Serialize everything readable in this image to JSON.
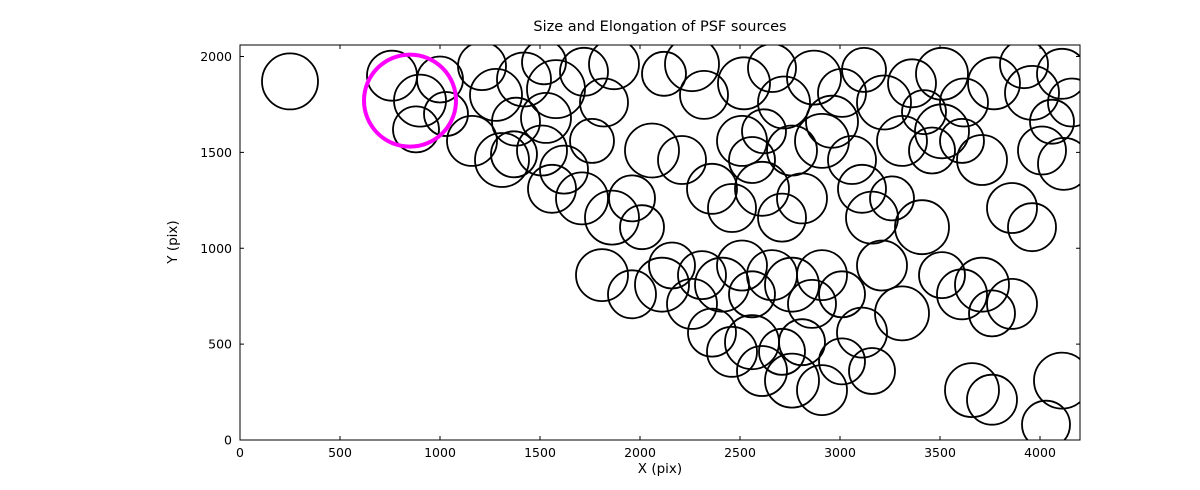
{
  "figure": {
    "title": "Size and Elongation of PSF sources",
    "xlabel": "X (pix)",
    "ylabel": "Y (pix)"
  },
  "chart_data": {
    "type": "scatter",
    "title": "Size and Elongation of PSF sources",
    "xlabel": "X (pix)",
    "ylabel": "Y (pix)",
    "xlim": [
      0,
      4200
    ],
    "ylim": [
      0,
      2060
    ],
    "xticks": [
      0,
      500,
      1000,
      1500,
      2000,
      2500,
      3000,
      3500,
      4000
    ],
    "yticks": [
      0,
      500,
      1000,
      1500,
      2000
    ],
    "grid": false,
    "legend": "none",
    "marker": "open-circle",
    "stroke_color": "#000000",
    "highlight_color": "#ff00ff",
    "circles": [
      [
        250,
        1870,
        140
      ],
      [
        760,
        1900,
        125
      ],
      [
        900,
        1770,
        130
      ],
      [
        1000,
        1880,
        115
      ],
      [
        1030,
        1700,
        110
      ],
      [
        880,
        1620,
        115
      ],
      [
        1210,
        1950,
        120
      ],
      [
        1280,
        1800,
        130
      ],
      [
        1420,
        1880,
        135
      ],
      [
        1520,
        1970,
        110
      ],
      [
        1580,
        1830,
        145
      ],
      [
        1380,
        1660,
        120
      ],
      [
        1530,
        1680,
        125
      ],
      [
        1720,
        1920,
        120
      ],
      [
        1870,
        1960,
        125
      ],
      [
        1820,
        1760,
        120
      ],
      [
        2120,
        1910,
        110
      ],
      [
        2260,
        1960,
        135
      ],
      [
        2320,
        1800,
        120
      ],
      [
        2520,
        1860,
        130
      ],
      [
        2660,
        1940,
        120
      ],
      [
        2720,
        1760,
        130
      ],
      [
        2870,
        1890,
        135
      ],
      [
        3010,
        1810,
        120
      ],
      [
        3120,
        1930,
        110
      ],
      [
        2960,
        1660,
        130
      ],
      [
        3220,
        1760,
        135
      ],
      [
        3360,
        1860,
        120
      ],
      [
        3510,
        1910,
        130
      ],
      [
        3420,
        1710,
        110
      ],
      [
        3620,
        1760,
        120
      ],
      [
        3770,
        1860,
        130
      ],
      [
        3920,
        1960,
        120
      ],
      [
        3960,
        1810,
        135
      ],
      [
        4110,
        1910,
        125
      ],
      [
        4160,
        1760,
        120
      ],
      [
        4060,
        1660,
        110
      ],
      [
        1160,
        1560,
        125
      ],
      [
        1310,
        1460,
        135
      ],
      [
        1370,
        1490,
        115
      ],
      [
        1510,
        1510,
        125
      ],
      [
        1620,
        1410,
        120
      ],
      [
        1760,
        1560,
        110
      ],
      [
        2060,
        1510,
        135
      ],
      [
        2210,
        1460,
        120
      ],
      [
        2510,
        1560,
        125
      ],
      [
        2560,
        1460,
        115
      ],
      [
        2620,
        1610,
        110
      ],
      [
        2760,
        1510,
        125
      ],
      [
        2910,
        1560,
        135
      ],
      [
        3060,
        1460,
        120
      ],
      [
        3310,
        1560,
        125
      ],
      [
        3460,
        1510,
        115
      ],
      [
        3510,
        1610,
        135
      ],
      [
        3610,
        1560,
        110
      ],
      [
        3710,
        1460,
        125
      ],
      [
        4010,
        1510,
        120
      ],
      [
        4120,
        1440,
        130
      ],
      [
        1560,
        1310,
        120
      ],
      [
        1710,
        1260,
        130
      ],
      [
        1860,
        1160,
        135
      ],
      [
        1960,
        1260,
        115
      ],
      [
        2010,
        1110,
        110
      ],
      [
        2360,
        1310,
        125
      ],
      [
        2460,
        1210,
        120
      ],
      [
        2610,
        1310,
        135
      ],
      [
        2710,
        1160,
        120
      ],
      [
        2810,
        1260,
        125
      ],
      [
        3110,
        1310,
        120
      ],
      [
        3160,
        1160,
        130
      ],
      [
        3260,
        1260,
        110
      ],
      [
        3410,
        1110,
        135
      ],
      [
        3860,
        1210,
        125
      ],
      [
        3960,
        1110,
        120
      ],
      [
        1810,
        860,
        130
      ],
      [
        1960,
        760,
        120
      ],
      [
        2110,
        810,
        135
      ],
      [
        2160,
        910,
        115
      ],
      [
        2260,
        710,
        125
      ],
      [
        2310,
        860,
        120
      ],
      [
        2410,
        810,
        135
      ],
      [
        2510,
        910,
        125
      ],
      [
        2560,
        760,
        115
      ],
      [
        2660,
        860,
        125
      ],
      [
        2760,
        810,
        135
      ],
      [
        2860,
        710,
        120
      ],
      [
        2910,
        860,
        125
      ],
      [
        3010,
        760,
        115
      ],
      [
        3210,
        910,
        125
      ],
      [
        3310,
        660,
        135
      ],
      [
        3510,
        860,
        115
      ],
      [
        3610,
        760,
        125
      ],
      [
        3710,
        810,
        135
      ],
      [
        3760,
        660,
        115
      ],
      [
        3860,
        710,
        125
      ],
      [
        2360,
        560,
        120
      ],
      [
        2460,
        460,
        125
      ],
      [
        2560,
        510,
        135
      ],
      [
        2610,
        360,
        125
      ],
      [
        2710,
        460,
        115
      ],
      [
        2760,
        310,
        135
      ],
      [
        2810,
        510,
        115
      ],
      [
        2910,
        260,
        125
      ],
      [
        3010,
        410,
        115
      ],
      [
        3110,
        560,
        125
      ],
      [
        3160,
        360,
        115
      ],
      [
        3660,
        260,
        135
      ],
      [
        3760,
        210,
        125
      ],
      [
        4110,
        310,
        140
      ],
      [
        4030,
        80,
        120
      ]
    ],
    "highlighted_circle": {
      "x": 850,
      "y": 1770,
      "r": 230
    }
  }
}
